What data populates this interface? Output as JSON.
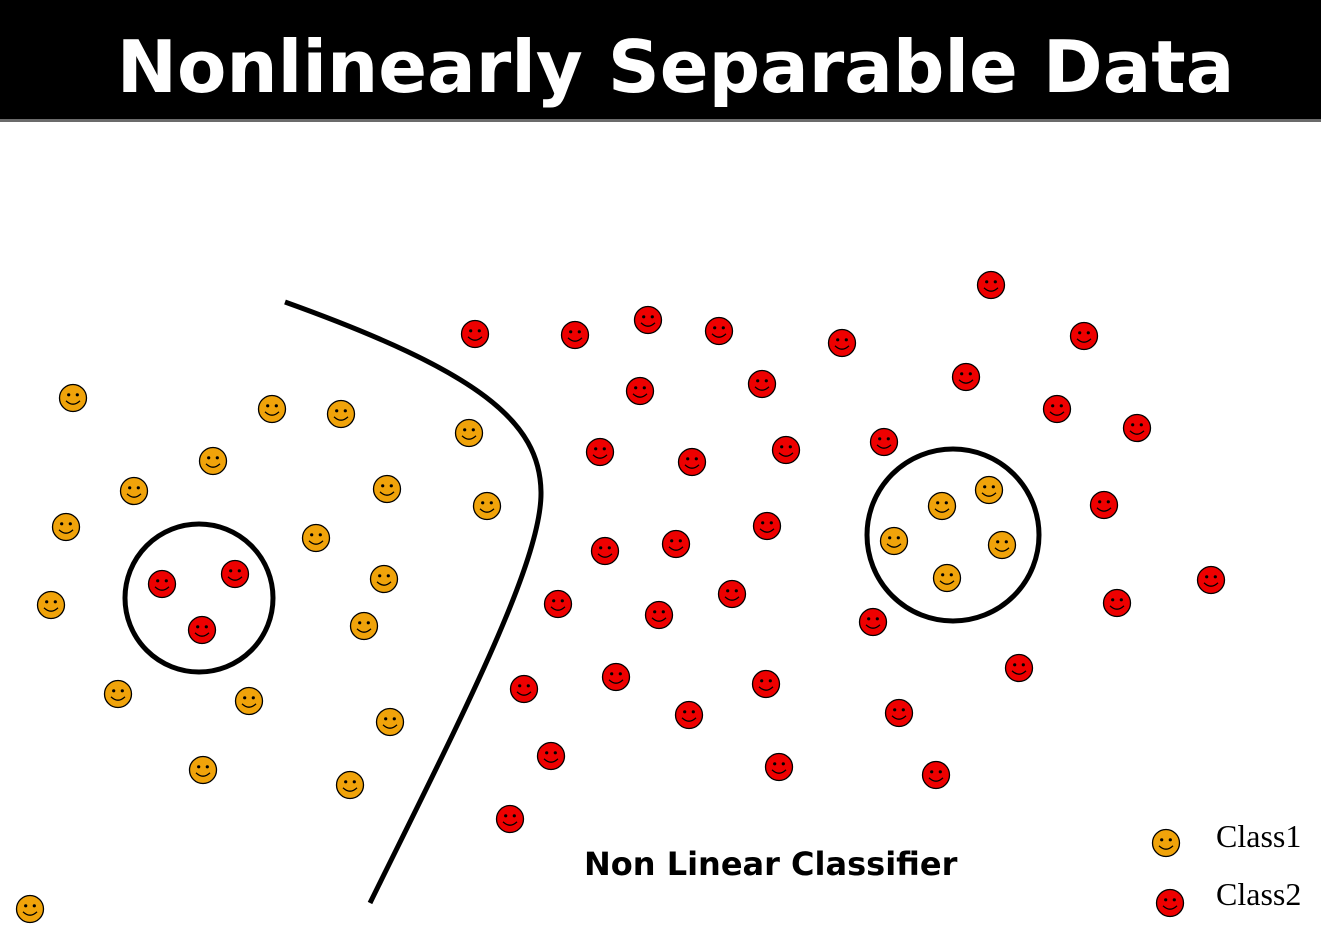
{
  "title": "Nonlinearly Separable Data",
  "classifier_label": "Non Linear Classifier",
  "legend": [
    {
      "label": "Class1",
      "color": "#F0A30A"
    },
    {
      "label": "Class2",
      "color": "#EE0000"
    }
  ],
  "colors": {
    "class1": "#F0A30A",
    "class2": "#EE0000",
    "title_bar": "#000000",
    "title_text": "#FFFFFF"
  },
  "icons": {
    "class1": "smiley-face-icon",
    "class2": "smiley-face-icon"
  }
}
